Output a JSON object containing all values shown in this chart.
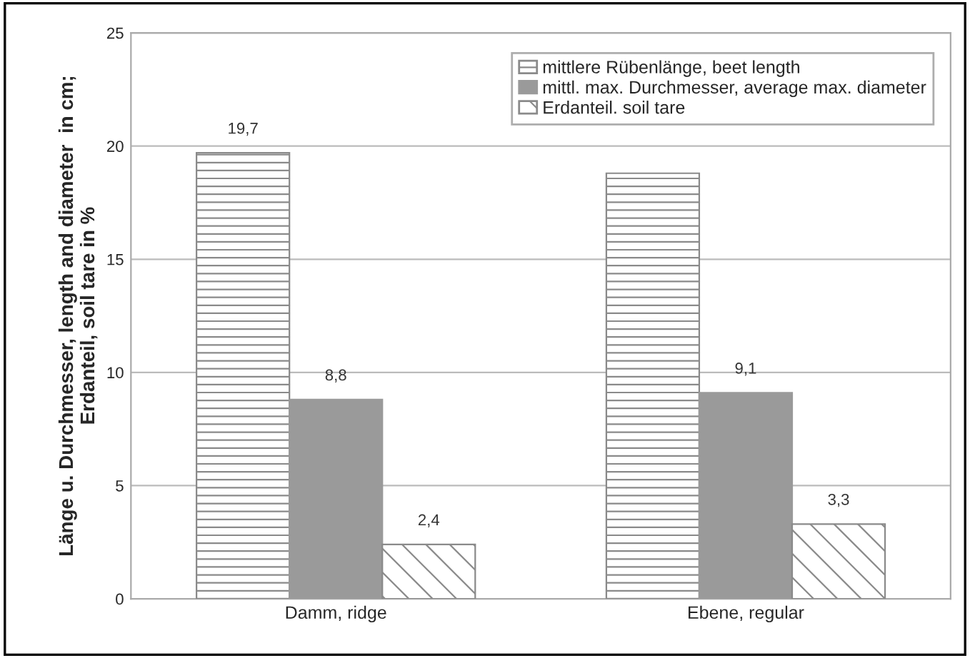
{
  "chart_data": {
    "type": "bar",
    "ylabel": "Länge u. Durchmesser, length and diameter  in cm;\nErdanteil, soil tare in %",
    "categories": [
      "Damm, ridge",
      "Ebene, regular"
    ],
    "series": [
      {
        "name": "mittlere Rübenlänge, beet length",
        "color": "#8a8a8a",
        "values": [
          19.7,
          18.8
        ],
        "value_labels": [
          "19,7",
          null
        ]
      },
      {
        "name": "mittl. max. Durchmesser, average max. diameter",
        "color": "#9a9a9a",
        "values": [
          8.8,
          9.1
        ],
        "value_labels": [
          "8,8",
          "9,1"
        ]
      },
      {
        "name": "Erdanteil. soil tare",
        "color": "#8a8a8a",
        "values": [
          2.4,
          3.3
        ],
        "value_labels": [
          "2,4",
          "3,3"
        ]
      }
    ],
    "ylim": [
      0,
      25
    ],
    "yticks": [
      0,
      5,
      10,
      15,
      20,
      25
    ],
    "grid": "y",
    "legend": "top right"
  }
}
